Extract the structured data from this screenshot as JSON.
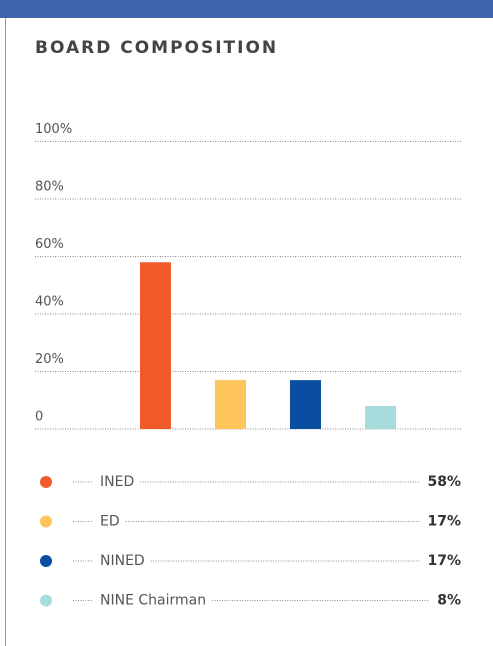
{
  "chart_data": {
    "type": "bar",
    "title": "BOARD COMPOSITION",
    "categories": [
      "INED",
      "ED",
      "NINED",
      "NINE Chairman"
    ],
    "values": [
      58,
      17,
      17,
      8
    ],
    "value_labels": [
      "58%",
      "17%",
      "17%",
      "8%"
    ],
    "colors": [
      "#f15a29",
      "#fec55a",
      "#0a4ea2",
      "#a6dcdc"
    ],
    "ylim": [
      0,
      100
    ],
    "yticks": [
      0,
      {
        "value": 20,
        "label": "20%"
      },
      {
        "value": 40,
        "label": "40%"
      },
      {
        "value": 60,
        "label": "60%"
      },
      {
        "value": 80,
        "label": "80%"
      },
      {
        "value": 100,
        "label": "100%"
      }
    ],
    "grid": true
  }
}
